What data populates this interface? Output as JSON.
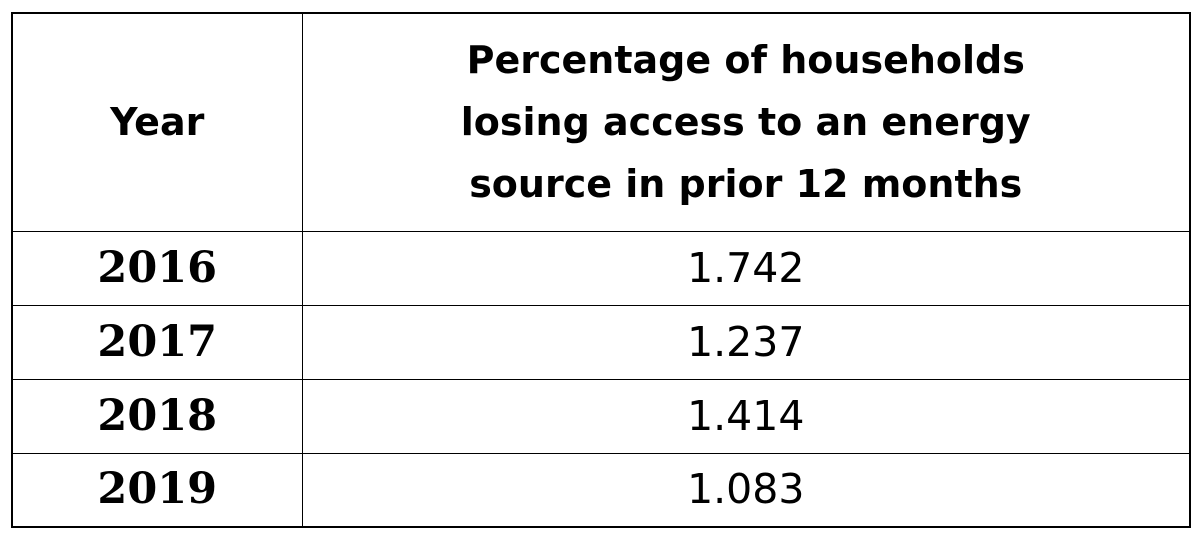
{
  "chart_data": {
    "type": "table",
    "columns": [
      "Year",
      "Percentage of households losing access to an energy source in prior 12 months"
    ],
    "header_lines": {
      "year": "Year",
      "value": [
        "Percentage of households",
        "losing access to an energy",
        "source in prior 12 months"
      ]
    },
    "rows": [
      {
        "year": "2016",
        "value": "1.742"
      },
      {
        "year": "2017",
        "value": "1.237"
      },
      {
        "year": "2018",
        "value": "1.414"
      },
      {
        "year": "2019",
        "value": "1.083"
      }
    ]
  }
}
